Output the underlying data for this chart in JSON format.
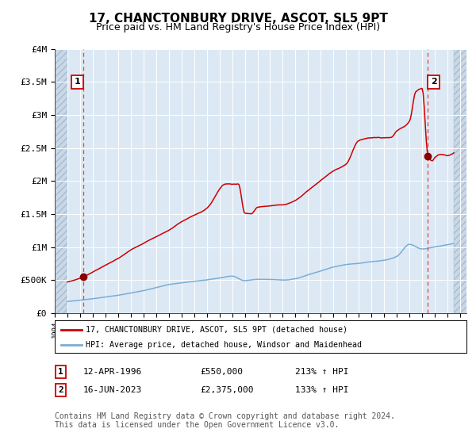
{
  "title": "17, CHANCTONBURY DRIVE, ASCOT, SL5 9PT",
  "subtitle": "Price paid vs. HM Land Registry's House Price Index (HPI)",
  "title_fontsize": 11,
  "subtitle_fontsize": 9,
  "hpi_line_color": "#7aadd4",
  "price_line_color": "#cc0000",
  "plot_bg_color": "#dce9f5",
  "grid_color": "#ffffff",
  "dashed_line_color": "#dd4444",
  "xlim": [
    1994.0,
    2026.5
  ],
  "ylim": [
    0,
    4000000
  ],
  "yticks": [
    0,
    500000,
    1000000,
    1500000,
    2000000,
    2500000,
    3000000,
    3500000,
    4000000
  ],
  "ytick_labels": [
    "£0",
    "£500K",
    "£1M",
    "£1.5M",
    "£2M",
    "£2.5M",
    "£3M",
    "£3.5M",
    "£4M"
  ],
  "sale1_x": 1996.28,
  "sale1_y": 550000,
  "sale1_label": "1",
  "sale2_x": 2023.46,
  "sale2_y": 2375000,
  "sale2_label": "2",
  "legend_line1": "17, CHANCTONBURY DRIVE, ASCOT, SL5 9PT (detached house)",
  "legend_line2": "HPI: Average price, detached house, Windsor and Maidenhead",
  "table_row1": [
    "1",
    "12-APR-1996",
    "£550,000",
    "213% ↑ HPI"
  ],
  "table_row2": [
    "2",
    "16-JUN-2023",
    "£2,375,000",
    "133% ↑ HPI"
  ],
  "footnote": "Contains HM Land Registry data © Crown copyright and database right 2024.\nThis data is licensed under the Open Government Licence v3.0.",
  "footnote_fontsize": 7,
  "hatch_data_start": 1995.0,
  "hatch_data_end": 2025.5
}
